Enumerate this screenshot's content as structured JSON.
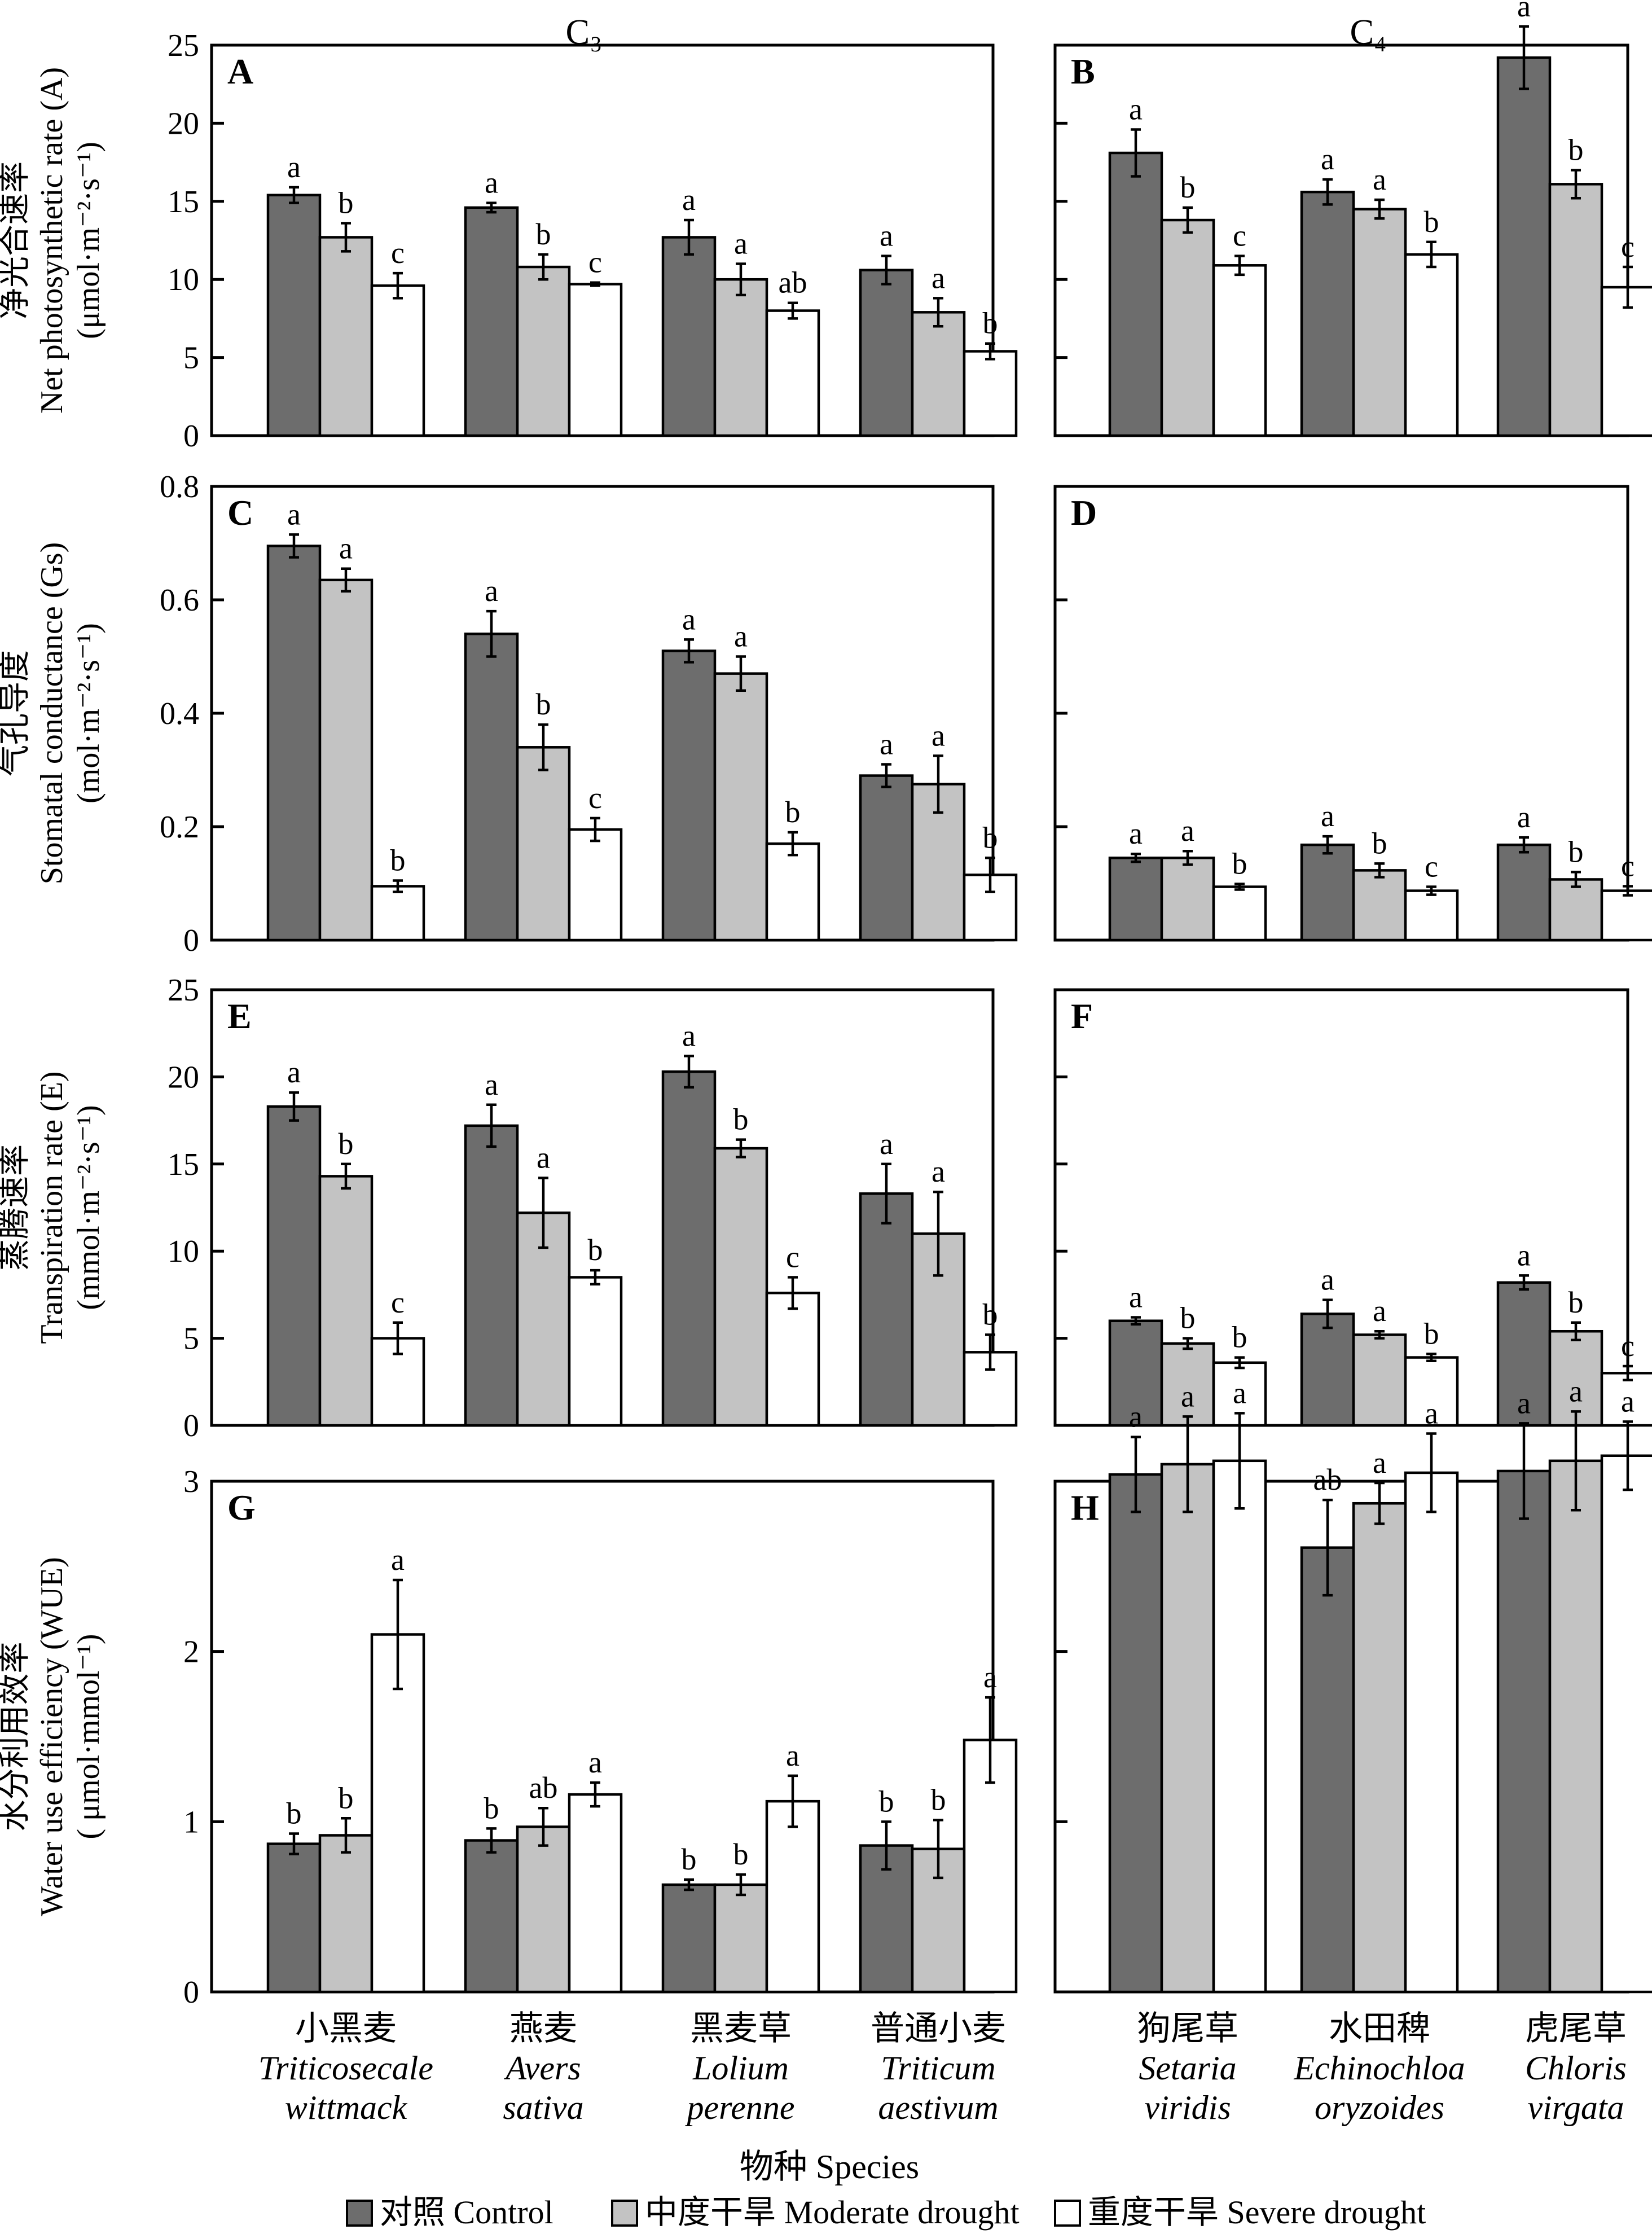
{
  "figure": {
    "headers": {
      "left": "C₃",
      "right": "C₄"
    },
    "x_axis_label": "物种 Species",
    "legend": [
      {
        "label": "对照 Control",
        "color": "#6d6d6d"
      },
      {
        "label": "中度干旱 Moderate drought",
        "color": "#c3c3c3"
      },
      {
        "label": "重度干旱 Severe drought",
        "color": "#ffffff"
      }
    ]
  },
  "chart_data": [
    {
      "type": "bar",
      "panel": "A",
      "group": "C3",
      "ylabel_cn": "净光合速率",
      "ylabel_en": "Net photosynthetic rate (A)",
      "yunit": "(μmol·m⁻²·s⁻¹)",
      "ylim": [
        0,
        25
      ],
      "yticks": [
        0,
        5,
        10,
        15,
        20,
        25
      ],
      "categories": [
        "小黑麦 Triticosecale wittmack",
        "燕麦 Avers sativa",
        "黑麦草 Lolium perenne",
        "普通小麦 Triticum aestivum"
      ],
      "series": [
        {
          "name": "对照 Control",
          "values": [
            15.4,
            14.6,
            12.7,
            10.6
          ],
          "errors": [
            0.5,
            0.3,
            1.1,
            0.9
          ],
          "letters": [
            "a",
            "a",
            "a",
            "a"
          ]
        },
        {
          "name": "中度干旱 Moderate drought",
          "values": [
            12.7,
            10.8,
            10.0,
            7.9
          ],
          "errors": [
            0.9,
            0.8,
            1.0,
            0.9
          ],
          "letters": [
            "b",
            "b",
            "a",
            "a"
          ]
        },
        {
          "name": "重度干旱 Severe drought",
          "values": [
            9.6,
            9.7,
            8.0,
            5.4
          ],
          "errors": [
            0.8,
            0.1,
            0.5,
            0.5
          ],
          "letters": [
            "c",
            "c",
            "ab",
            "b"
          ]
        }
      ]
    },
    {
      "type": "bar",
      "panel": "B",
      "group": "C4",
      "ylim": [
        0,
        25
      ],
      "yticks": [
        0,
        5,
        10,
        15,
        20,
        25
      ],
      "categories": [
        "狗尾草 Setaria viridis",
        "水田稗 Echinochloa oryzoides",
        "虎尾草 Chloris virgata"
      ],
      "series": [
        {
          "name": "对照 Control",
          "values": [
            18.1,
            15.6,
            24.2
          ],
          "errors": [
            1.5,
            0.8,
            2.0
          ],
          "letters": [
            "a",
            "a",
            "a"
          ]
        },
        {
          "name": "中度干旱 Moderate drought",
          "values": [
            13.8,
            14.5,
            16.1
          ],
          "errors": [
            0.8,
            0.6,
            0.9
          ],
          "letters": [
            "b",
            "a",
            "b"
          ]
        },
        {
          "name": "重度干旱 Severe drought",
          "values": [
            10.9,
            11.6,
            9.5
          ],
          "errors": [
            0.6,
            0.8,
            1.3
          ],
          "letters": [
            "c",
            "b",
            "c"
          ]
        }
      ]
    },
    {
      "type": "bar",
      "panel": "C",
      "group": "C3",
      "ylabel_cn": "气孔导度",
      "ylabel_en": "Stomatal conductance (Gs)",
      "yunit": "(mol·m⁻²·s⁻¹)",
      "ylim": [
        0,
        0.8
      ],
      "yticks": [
        0,
        0.2,
        0.4,
        0.6,
        0.8
      ],
      "categories": [
        "小黑麦 Triticosecale wittmack",
        "燕麦 Avers sativa",
        "黑麦草 Lolium perenne",
        "普通小麦 Triticum aestivum"
      ],
      "series": [
        {
          "name": "对照 Control",
          "values": [
            0.695,
            0.54,
            0.51,
            0.29
          ],
          "errors": [
            0.02,
            0.04,
            0.02,
            0.02
          ],
          "letters": [
            "a",
            "a",
            "a",
            "a"
          ]
        },
        {
          "name": "中度干旱 Moderate drought",
          "values": [
            0.635,
            0.34,
            0.47,
            0.275
          ],
          "errors": [
            0.02,
            0.04,
            0.03,
            0.05
          ],
          "letters": [
            "a",
            "b",
            "a",
            "a"
          ]
        },
        {
          "name": "重度干旱 Severe drought",
          "values": [
            0.095,
            0.195,
            0.17,
            0.115
          ],
          "errors": [
            0.01,
            0.02,
            0.02,
            0.03
          ],
          "letters": [
            "b",
            "c",
            "b",
            "b"
          ]
        }
      ]
    },
    {
      "type": "bar",
      "panel": "D",
      "group": "C4",
      "ylim": [
        0,
        0.8
      ],
      "yticks": [
        0,
        0.2,
        0.4,
        0.6,
        0.8
      ],
      "categories": [
        "狗尾草 Setaria viridis",
        "水田稗 Echinochloa oryzoides",
        "虎尾草 Chloris virgata"
      ],
      "series": [
        {
          "name": "对照 Control",
          "values": [
            0.145,
            0.168,
            0.168
          ],
          "errors": [
            0.007,
            0.015,
            0.013
          ],
          "letters": [
            "a",
            "a",
            "a"
          ]
        },
        {
          "name": "中度干旱 Moderate drought",
          "values": [
            0.145,
            0.123,
            0.107
          ],
          "errors": [
            0.012,
            0.012,
            0.013
          ],
          "letters": [
            "a",
            "b",
            "b"
          ]
        },
        {
          "name": "重度干旱 Severe drought",
          "values": [
            0.094,
            0.087,
            0.087
          ],
          "errors": [
            0.005,
            0.007,
            0.008
          ],
          "letters": [
            "b",
            "c",
            "c"
          ]
        }
      ]
    },
    {
      "type": "bar",
      "panel": "E",
      "group": "C3",
      "ylabel_cn": "蒸腾速率",
      "ylabel_en": "Transpiration rate (E)",
      "yunit": "(mmol·m⁻²·s⁻¹)",
      "ylim": [
        0,
        25
      ],
      "yticks": [
        0,
        5,
        10,
        15,
        20,
        25
      ],
      "categories": [
        "小黑麦 Triticosecale wittmack",
        "燕麦 Avers sativa",
        "黑麦草 Lolium perenne",
        "普通小麦 Triticum aestivum"
      ],
      "series": [
        {
          "name": "对照 Control",
          "values": [
            18.3,
            17.2,
            20.3,
            13.3
          ],
          "errors": [
            0.8,
            1.2,
            0.9,
            1.7
          ],
          "letters": [
            "a",
            "a",
            "a",
            "a"
          ]
        },
        {
          "name": "中度干旱 Moderate drought",
          "values": [
            14.3,
            12.2,
            15.9,
            11.0
          ],
          "errors": [
            0.7,
            2.0,
            0.5,
            2.4
          ],
          "letters": [
            "b",
            "a",
            "b",
            "a"
          ]
        },
        {
          "name": "重度干旱 Severe drought",
          "values": [
            5.0,
            8.5,
            7.6,
            4.2
          ],
          "errors": [
            0.9,
            0.4,
            0.9,
            1.0
          ],
          "letters": [
            "c",
            "b",
            "c",
            "b"
          ]
        }
      ]
    },
    {
      "type": "bar",
      "panel": "F",
      "group": "C4",
      "ylim": [
        0,
        25
      ],
      "yticks": [
        0,
        5,
        10,
        15,
        20,
        25
      ],
      "categories": [
        "狗尾草 Setaria viridis",
        "水田稗 Echinochloa oryzoides",
        "虎尾草 Chloris virgata"
      ],
      "series": [
        {
          "name": "对照 Control",
          "values": [
            6.0,
            6.4,
            8.2
          ],
          "errors": [
            0.2,
            0.8,
            0.4
          ],
          "letters": [
            "a",
            "a",
            "a"
          ]
        },
        {
          "name": "中度干旱 Moderate drought",
          "values": [
            4.7,
            5.2,
            5.4
          ],
          "errors": [
            0.3,
            0.2,
            0.5
          ],
          "letters": [
            "b",
            "a",
            "b"
          ]
        },
        {
          "name": "重度干旱 Severe drought",
          "values": [
            3.6,
            3.9,
            3.0
          ],
          "errors": [
            0.3,
            0.2,
            0.4
          ],
          "letters": [
            "b",
            "b",
            "c"
          ]
        }
      ]
    },
    {
      "type": "bar",
      "panel": "G",
      "group": "C3",
      "ylabel_cn": "水分利用效率",
      "ylabel_en": "Water use efficiency (WUE)",
      "yunit": "( μmol·mmol⁻¹)",
      "ylim": [
        0,
        3
      ],
      "yticks": [
        0,
        1,
        2,
        3
      ],
      "categories": [
        "小黑麦 Triticosecale wittmack",
        "燕麦 Avers sativa",
        "黑麦草 Lolium perenne",
        "普通小麦 Triticum aestivum"
      ],
      "series": [
        {
          "name": "对照 Control",
          "values": [
            0.87,
            0.89,
            0.63,
            0.86
          ],
          "errors": [
            0.06,
            0.07,
            0.03,
            0.14
          ],
          "letters": [
            "b",
            "b",
            "b",
            "b"
          ]
        },
        {
          "name": "中度干旱 Moderate drought",
          "values": [
            0.92,
            0.97,
            0.63,
            0.84
          ],
          "errors": [
            0.1,
            0.11,
            0.06,
            0.17
          ],
          "letters": [
            "b",
            "ab",
            "b",
            "b"
          ]
        },
        {
          "name": "重度干旱 Severe drought",
          "values": [
            2.1,
            1.16,
            1.12,
            1.48
          ],
          "errors": [
            0.32,
            0.07,
            0.15,
            0.25
          ],
          "letters": [
            "a",
            "a",
            "a",
            "a"
          ]
        }
      ]
    },
    {
      "type": "bar",
      "panel": "H",
      "group": "C4",
      "ylim": [
        0,
        3
      ],
      "yticks": [
        0,
        1,
        2,
        3
      ],
      "categories": [
        "狗尾草 Setaria viridis",
        "水田稗 Echinochloa oryzoides",
        "虎尾草 Chloris virgata"
      ],
      "series": [
        {
          "name": "对照 Control",
          "values": [
            3.04,
            2.61,
            3.06
          ],
          "errors": [
            0.22,
            0.28,
            0.28
          ],
          "letters": [
            "a",
            "ab",
            "a"
          ]
        },
        {
          "name": "中度干旱 Moderate drought",
          "values": [
            3.1,
            2.87,
            3.12
          ],
          "errors": [
            0.28,
            0.12,
            0.29
          ],
          "letters": [
            "a",
            "a",
            "a"
          ]
        },
        {
          "name": "重度干旱 Severe drought",
          "values": [
            3.12,
            3.05,
            3.15
          ],
          "errors": [
            0.28,
            0.23,
            0.2
          ],
          "letters": [
            "a",
            "a",
            "a"
          ]
        }
      ]
    }
  ]
}
